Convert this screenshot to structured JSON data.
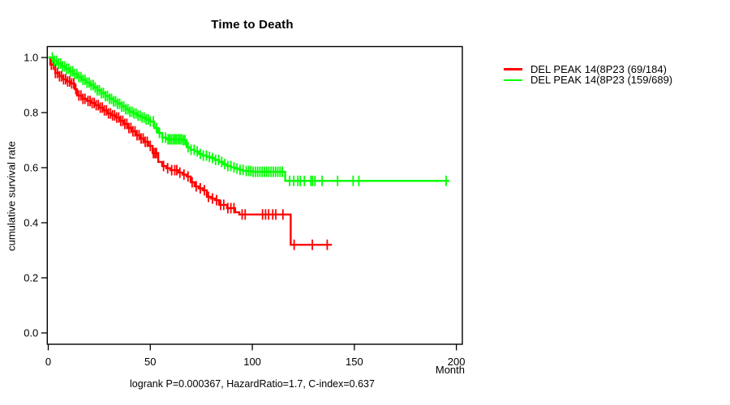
{
  "chart_data": {
    "type": "line",
    "subtype": "kaplan-meier-step",
    "title": "Time to Death",
    "xlabel": "Month",
    "ylabel": "cumulative survival rate",
    "footer": "logrank P=0.000367, HazardRatio=1.7, C-index=0.637",
    "xlim": [
      0,
      200
    ],
    "ylim": [
      0.0,
      1.0
    ],
    "grid": false,
    "x_ticks": [
      0,
      50,
      100,
      150,
      200
    ],
    "x_tick_labels": [
      "0",
      "50",
      "100",
      "150",
      "200"
    ],
    "y_ticks": [
      0.0,
      0.2,
      0.4,
      0.6,
      0.8,
      1.0
    ],
    "y_tick_labels": [
      "0.0",
      "0.2",
      "0.4",
      "0.6",
      "0.8",
      "1.0"
    ],
    "legend": {
      "position": "right-outside",
      "items": [
        {
          "label": "DEL PEAK 14(8P23 (69/184)",
          "color": "#ff0000"
        },
        {
          "label": "DEL PEAK 14(8P23 (159/689)",
          "color": "#00ff00"
        }
      ]
    },
    "series": [
      {
        "name": "DEL PEAK 14(8P23 (69/184)",
        "color": "#ff0000",
        "end_month": 139,
        "steps": [
          [
            0,
            1.0
          ],
          [
            1,
            0.974
          ],
          [
            3.4,
            0.944
          ],
          [
            5.5,
            0.932
          ],
          [
            7.4,
            0.921
          ],
          [
            9,
            0.913
          ],
          [
            10.9,
            0.906
          ],
          [
            12.9,
            0.885
          ],
          [
            14.1,
            0.862
          ],
          [
            16.9,
            0.85
          ],
          [
            19,
            0.842
          ],
          [
            20.9,
            0.835
          ],
          [
            22.9,
            0.827
          ],
          [
            24.8,
            0.818
          ],
          [
            26.8,
            0.808
          ],
          [
            28.8,
            0.797
          ],
          [
            30.8,
            0.79
          ],
          [
            32.8,
            0.782
          ],
          [
            34.8,
            0.77
          ],
          [
            36.8,
            0.759
          ],
          [
            39.1,
            0.744
          ],
          [
            41,
            0.732
          ],
          [
            43.1,
            0.718
          ],
          [
            45,
            0.706
          ],
          [
            46.7,
            0.694
          ],
          [
            49.1,
            0.679
          ],
          [
            51.1,
            0.653
          ],
          [
            53.9,
            0.621
          ],
          [
            55.8,
            0.606
          ],
          [
            57.8,
            0.598
          ],
          [
            59.8,
            0.591
          ],
          [
            63.8,
            0.582
          ],
          [
            65.8,
            0.575
          ],
          [
            67.8,
            0.568
          ],
          [
            69.8,
            0.547
          ],
          [
            71.7,
            0.532
          ],
          [
            73.7,
            0.525
          ],
          [
            75.7,
            0.518
          ],
          [
            77.7,
            0.494
          ],
          [
            79.7,
            0.488
          ],
          [
            81.7,
            0.482
          ],
          [
            83.7,
            0.465
          ],
          [
            87.6,
            0.453
          ],
          [
            91.6,
            0.438
          ],
          [
            93.6,
            0.43
          ],
          [
            118.8,
            0.32
          ]
        ],
        "censor_months": [
          1.5,
          2.5,
          3.5,
          4.5,
          5.5,
          6.5,
          7.5,
          8.5,
          9.5,
          10.5,
          11.5,
          12.5,
          13.5,
          15,
          16,
          17,
          18,
          19.5,
          20.5,
          21.5,
          22.5,
          23.5,
          24.5,
          25.5,
          26.5,
          27.5,
          28.5,
          29.5,
          30.5,
          31.5,
          32.5,
          33.5,
          34.5,
          35.5,
          36.5,
          37.5,
          38.5,
          39.5,
          40.5,
          41.5,
          42.5,
          43.5,
          44.5,
          45.5,
          46.5,
          47.5,
          48.5,
          50,
          51.5,
          52.3,
          53,
          56.5,
          58.5,
          60.5,
          62,
          63,
          64.5,
          66.5,
          68.5,
          70.5,
          72.5,
          74.5,
          76.5,
          78.5,
          80.5,
          82.5,
          84.5,
          86,
          88,
          89.5,
          91,
          95,
          96.5,
          105,
          106.5,
          108,
          110,
          111.5,
          115,
          120.5,
          129.4,
          136.7
        ]
      },
      {
        "name": "DEL PEAK 14(8P23 (159/689)",
        "color": "#00ff00",
        "end_month": 196.5,
        "steps": [
          [
            0,
            1.0
          ],
          [
            2.2,
            0.988
          ],
          [
            4.2,
            0.978
          ],
          [
            6.2,
            0.968
          ],
          [
            8.1,
            0.959
          ],
          [
            10.1,
            0.95
          ],
          [
            12.1,
            0.94
          ],
          [
            14.1,
            0.929
          ],
          [
            16.1,
            0.919
          ],
          [
            18.1,
            0.909
          ],
          [
            20.1,
            0.9
          ],
          [
            22.1,
            0.891
          ],
          [
            24,
            0.881
          ],
          [
            26,
            0.871
          ],
          [
            28,
            0.86
          ],
          [
            30,
            0.85
          ],
          [
            32,
            0.841
          ],
          [
            34,
            0.832
          ],
          [
            36,
            0.822
          ],
          [
            38,
            0.812
          ],
          [
            39.9,
            0.803
          ],
          [
            41.9,
            0.797
          ],
          [
            43.9,
            0.789
          ],
          [
            45.9,
            0.782
          ],
          [
            47.9,
            0.775
          ],
          [
            49.9,
            0.768
          ],
          [
            51.9,
            0.744
          ],
          [
            53.8,
            0.726
          ],
          [
            55.8,
            0.709
          ],
          [
            57.8,
            0.703
          ],
          [
            65.8,
            0.7
          ],
          [
            67.8,
            0.674
          ],
          [
            69.7,
            0.665
          ],
          [
            71.7,
            0.659
          ],
          [
            73.7,
            0.65
          ],
          [
            75.7,
            0.644
          ],
          [
            77.7,
            0.639
          ],
          [
            79.7,
            0.635
          ],
          [
            81.7,
            0.628
          ],
          [
            83.7,
            0.621
          ],
          [
            85.6,
            0.613
          ],
          [
            87.6,
            0.606
          ],
          [
            89.6,
            0.601
          ],
          [
            91.6,
            0.597
          ],
          [
            93.6,
            0.592
          ],
          [
            95.6,
            0.588
          ],
          [
            99.6,
            0.585
          ],
          [
            116.1,
            0.552
          ]
        ],
        "censor_months": [
          2,
          3,
          4,
          5,
          6,
          7,
          8,
          9,
          10,
          11,
          12,
          13,
          14,
          15,
          16,
          17,
          18,
          19,
          20,
          21,
          22,
          23,
          24,
          25,
          26,
          27,
          28,
          29,
          30,
          31,
          32,
          33,
          34,
          35,
          36,
          37,
          38,
          39,
          40,
          41,
          42,
          43,
          44,
          45,
          46,
          47,
          48,
          49,
          50,
          51.5,
          53,
          54.5,
          56,
          57.5,
          58.7,
          59.5,
          60.3,
          61.2,
          62,
          62.8,
          63.7,
          64.5,
          65.3,
          66.2,
          67,
          68.5,
          70,
          71.5,
          73,
          74.5,
          76,
          77.5,
          79,
          80.5,
          82,
          83.5,
          85,
          86.5,
          88,
          89.5,
          91,
          92.5,
          94,
          95.5,
          97,
          98.2,
          99.3,
          100.4,
          101.5,
          102.6,
          103.7,
          104.8,
          105.9,
          107,
          108.1,
          109.2,
          110.3,
          111.4,
          112.5,
          113.6,
          114.7,
          118.3,
          120.3,
          122.3,
          123.5,
          125.5,
          128.7,
          129.5,
          130.7,
          134.2,
          141.8,
          149.4,
          152.2,
          195
        ]
      }
    ]
  }
}
